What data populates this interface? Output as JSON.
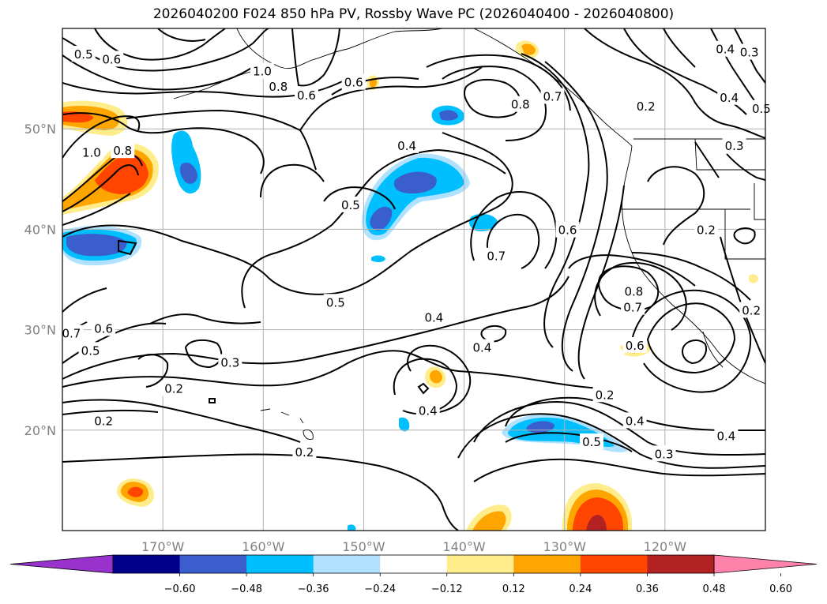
{
  "title": "2026040200 F024 850 hPa PV, Rossby Wave PC (2026040400 - 2026040800)",
  "lat_labels": [
    {
      "lat": 50,
      "label": "50°N"
    },
    {
      "lat": 40,
      "label": "40°N"
    },
    {
      "lat": 30,
      "label": "30°N"
    },
    {
      "lat": 20,
      "label": "20°N"
    }
  ],
  "lon_labels": [
    {
      "lon": -170,
      "label": "170°W"
    },
    {
      "lon": -160,
      "label": "160°W"
    },
    {
      "lon": -150,
      "label": "150°W"
    },
    {
      "lon": -140,
      "label": "140°W"
    },
    {
      "lon": -130,
      "label": "130°W"
    },
    {
      "lon": -120,
      "label": "120°W"
    }
  ],
  "colorbar": {
    "levels": [
      "−0.60",
      "−0.48",
      "−0.36",
      "−0.24",
      "−0.12",
      "0.12",
      "0.24",
      "0.36",
      "0.48",
      "0.60"
    ],
    "colors": [
      "#9932cc",
      "#00008b",
      "#3a5fcd",
      "#00bfff",
      "#b0e2ff",
      "#ffffff",
      "#ffec8b",
      "#ffa500",
      "#ff4500",
      "#b22222",
      "#ff82ab"
    ]
  },
  "contour_labels": [
    {
      "text": "1.0",
      "lon": -160.1,
      "lat": 55.7
    },
    {
      "text": "0.8",
      "lon": -158.5,
      "lat": 54.2
    },
    {
      "text": "0.6",
      "lon": -155.7,
      "lat": 53.3
    },
    {
      "text": "0.5",
      "lon": -177.9,
      "lat": 57.4
    },
    {
      "text": "0.6",
      "lon": -175.1,
      "lat": 56.9
    },
    {
      "text": "0.6",
      "lon": -151.0,
      "lat": 54.6
    },
    {
      "text": "0.8",
      "lon": -134.4,
      "lat": 52.4
    },
    {
      "text": "0.7",
      "lon": -131.2,
      "lat": 53.2
    },
    {
      "text": "0.2",
      "lon": -121.9,
      "lat": 52.2
    },
    {
      "text": "0.4",
      "lon": -114.0,
      "lat": 57.9
    },
    {
      "text": "0.3",
      "lon": -111.6,
      "lat": 57.6
    },
    {
      "text": "0.4",
      "lon": -113.6,
      "lat": 53.1
    },
    {
      "text": "0.5",
      "lon": -110.4,
      "lat": 52.0
    },
    {
      "text": "0.3",
      "lon": -113.1,
      "lat": 48.3
    },
    {
      "text": "1.0",
      "lon": -177.1,
      "lat": 47.6
    },
    {
      "text": "0.8",
      "lon": -174.0,
      "lat": 47.8
    },
    {
      "text": "0.4",
      "lon": -145.7,
      "lat": 48.3
    },
    {
      "text": "0.5",
      "lon": -151.3,
      "lat": 42.4
    },
    {
      "text": "0.7",
      "lon": -136.8,
      "lat": 37.3
    },
    {
      "text": "0.6",
      "lon": -129.7,
      "lat": 39.9
    },
    {
      "text": "0.2",
      "lon": -115.9,
      "lat": 39.9
    },
    {
      "text": "0.8",
      "lon": -123.1,
      "lat": 33.8
    },
    {
      "text": "0.7",
      "lon": -123.2,
      "lat": 32.2
    },
    {
      "text": "0.2",
      "lon": -111.4,
      "lat": 31.9
    },
    {
      "text": "0.5",
      "lon": -152.8,
      "lat": 32.7
    },
    {
      "text": "0.4",
      "lon": -143.0,
      "lat": 31.2
    },
    {
      "text": "0.4",
      "lon": -138.2,
      "lat": 28.2
    },
    {
      "text": "0.6",
      "lon": -123.0,
      "lat": 28.4
    },
    {
      "text": "0.7",
      "lon": -179.1,
      "lat": 29.6
    },
    {
      "text": "0.6",
      "lon": -175.9,
      "lat": 30.1
    },
    {
      "text": "0.5",
      "lon": -177.2,
      "lat": 27.9
    },
    {
      "text": "0.3",
      "lon": -163.3,
      "lat": 26.7
    },
    {
      "text": "0.2",
      "lon": -168.9,
      "lat": 24.1
    },
    {
      "text": "0.2",
      "lon": -175.9,
      "lat": 20.9
    },
    {
      "text": "0.4",
      "lon": -143.6,
      "lat": 21.9
    },
    {
      "text": "0.2",
      "lon": -126.0,
      "lat": 23.5
    },
    {
      "text": "0.4",
      "lon": -123.0,
      "lat": 20.9
    },
    {
      "text": "0.5",
      "lon": -127.3,
      "lat": 18.8
    },
    {
      "text": "0.3",
      "lon": -120.1,
      "lat": 17.6
    },
    {
      "text": "0.4",
      "lon": -113.9,
      "lat": 19.4
    },
    {
      "text": "0.2",
      "lon": -155.9,
      "lat": 17.8
    }
  ]
}
